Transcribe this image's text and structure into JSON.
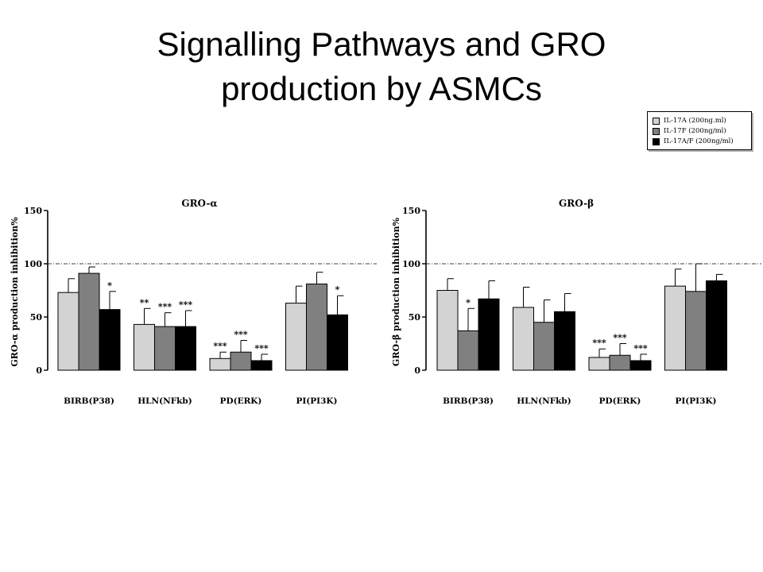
{
  "slide": {
    "title_line1": "Signalling Pathways and GRO",
    "title_line2": "production by ASMCs"
  },
  "legend": {
    "items": [
      {
        "label": "IL-17A (200ng.ml)",
        "color": "#d3d3d3"
      },
      {
        "label": "IL-17F (200ng/ml)",
        "color": "#808080"
      },
      {
        "label": "IL-17A/F (200ng/ml)",
        "color": "#000000"
      }
    ]
  },
  "chart_data": [
    {
      "type": "bar",
      "title": "GRO-α",
      "ylabel": "GRO-α production inhibition%",
      "ylim": [
        0,
        150
      ],
      "yticks": [
        0,
        50,
        100,
        150
      ],
      "reference_line": 100,
      "categories": [
        "BIRB(P38)",
        "HLN(NFkb)",
        "PD(ERK)",
        "PI(PI3K)"
      ],
      "series": [
        {
          "name": "IL-17A (200ng.ml)",
          "color": "#d3d3d3",
          "values": [
            73,
            43,
            11,
            63
          ],
          "errors": [
            13,
            15,
            6,
            16
          ],
          "marks": [
            "",
            "**",
            "***",
            ""
          ]
        },
        {
          "name": "IL-17F (200ng/ml)",
          "color": "#808080",
          "values": [
            91,
            41,
            17,
            81
          ],
          "errors": [
            6,
            13,
            11,
            11
          ],
          "marks": [
            "",
            "***",
            "***",
            ""
          ]
        },
        {
          "name": "IL-17A/F (200ng/ml)",
          "color": "#000000",
          "values": [
            57,
            41,
            9,
            52
          ],
          "errors": [
            17,
            15,
            6,
            18
          ],
          "marks": [
            "*",
            "***",
            "***",
            "*"
          ]
        }
      ]
    },
    {
      "type": "bar",
      "title": "GRO-β",
      "ylabel": "GRO-β production inhibition%",
      "ylim": [
        0,
        150
      ],
      "yticks": [
        0,
        50,
        100,
        150
      ],
      "reference_line": 100,
      "categories": [
        "BIRB(P38)",
        "HLN(NFkb)",
        "PD(ERK)",
        "PI(PI3K)"
      ],
      "series": [
        {
          "name": "IL-17A (200ng.ml)",
          "color": "#d3d3d3",
          "values": [
            75,
            59,
            12,
            79
          ],
          "errors": [
            11,
            19,
            8,
            16
          ],
          "marks": [
            "",
            "",
            "***",
            ""
          ]
        },
        {
          "name": "IL-17F (200ng/ml)",
          "color": "#808080",
          "values": [
            37,
            45,
            14,
            74
          ],
          "errors": [
            21,
            21,
            11,
            26
          ],
          "marks": [
            "*",
            "",
            "***",
            ""
          ]
        },
        {
          "name": "IL-17A/F (200ng/ml)",
          "color": "#000000",
          "values": [
            67,
            55,
            9,
            84
          ],
          "errors": [
            17,
            17,
            6,
            6
          ],
          "marks": [
            "",
            "",
            "***",
            ""
          ]
        }
      ]
    }
  ]
}
